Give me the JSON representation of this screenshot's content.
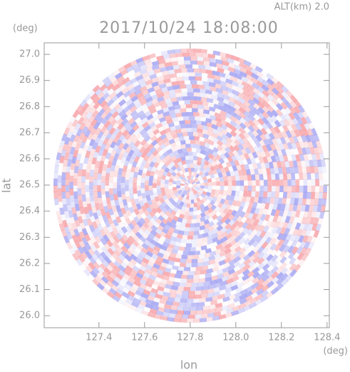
{
  "chart_data": {
    "type": "radar-ppi",
    "title": "2017/10/24 18:08:00",
    "subtitle": "ALT(km) 2.0",
    "xlabel": "lon",
    "ylabel": "lat",
    "xunit": "(deg)",
    "yunit": "(deg)",
    "xlim": [
      127.16,
      128.41
    ],
    "ylim": [
      25.954,
      27.044
    ],
    "xticks": [
      127.4,
      127.6,
      127.8,
      {
        "value": 128,
        "label": "128.0"
      },
      128.2,
      128.4
    ],
    "yticks": [
      {
        "value": 26,
        "label": "26.0"
      },
      26.1,
      26.2,
      26.3,
      26.4,
      26.5,
      26.6,
      26.7,
      26.8,
      26.9,
      {
        "value": 27,
        "label": "27.0"
      }
    ]
  }
}
